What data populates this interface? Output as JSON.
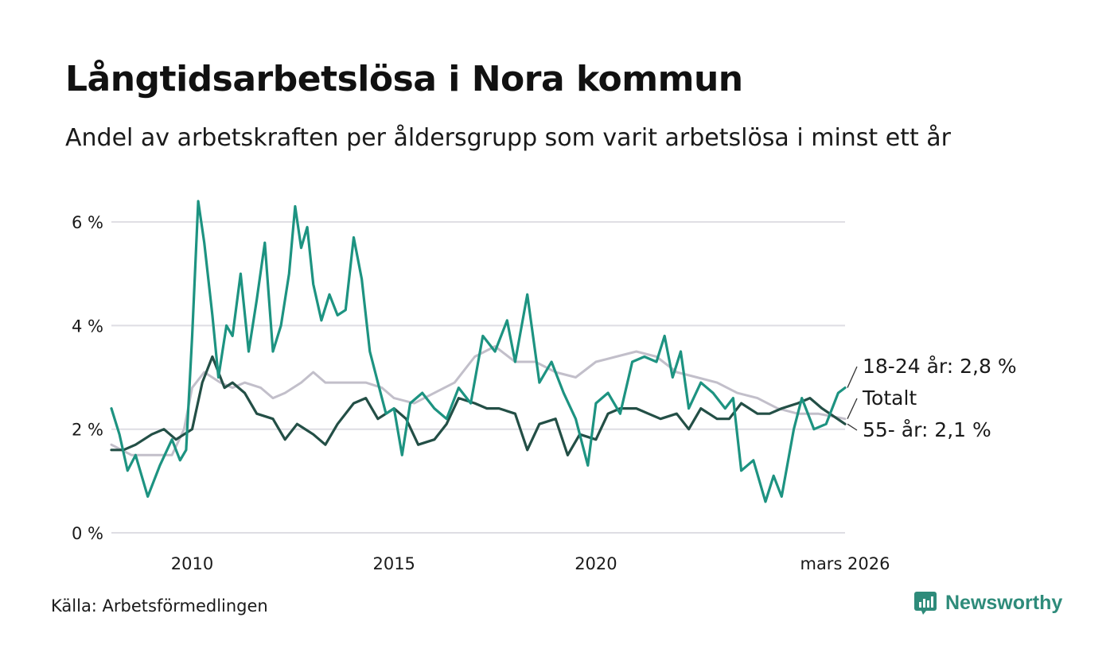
{
  "title": "Långtidsarbetslösa i Nora kommun",
  "subtitle": "Andel av arbetskraften per åldersgrupp som varit arbetslösa i minst ett år",
  "source": "Källa: Arbetsförmedlingen",
  "brand": "Newsworthy",
  "chart_data": {
    "type": "line",
    "x_range": [
      2008.0,
      2026.17
    ],
    "ylim": [
      0,
      6.6
    ],
    "y_ticks": [
      0,
      2,
      4,
      6
    ],
    "y_tick_labels": [
      "0 %",
      "2 %",
      "4 %",
      "6 %"
    ],
    "x_ticks": [
      2010,
      2015,
      2020,
      2026.17
    ],
    "x_tick_labels": [
      "2010",
      "2015",
      "2020",
      "mars 2026"
    ],
    "grid": true,
    "series": [
      {
        "name": "Totalt",
        "label": "Totalt",
        "color": "#c2bfca",
        "x": [
          2008.0,
          2008.5,
          2009.0,
          2009.5,
          2009.8,
          2010.0,
          2010.3,
          2010.7,
          2011.0,
          2011.3,
          2011.7,
          2012.0,
          2012.3,
          2012.7,
          2013.0,
          2013.3,
          2013.7,
          2014.0,
          2014.3,
          2014.7,
          2015.0,
          2015.5,
          2016.0,
          2016.5,
          2017.0,
          2017.5,
          2018.0,
          2018.5,
          2019.0,
          2019.5,
          2020.0,
          2020.5,
          2021.0,
          2021.5,
          2022.0,
          2022.5,
          2023.0,
          2023.5,
          2024.0,
          2024.5,
          2025.0,
          2025.5,
          2026.17
        ],
        "values": [
          1.7,
          1.5,
          1.5,
          1.5,
          2.0,
          2.8,
          3.1,
          2.9,
          2.8,
          2.9,
          2.8,
          2.6,
          2.7,
          2.9,
          3.1,
          2.9,
          2.9,
          2.9,
          2.9,
          2.8,
          2.6,
          2.5,
          2.7,
          2.9,
          3.4,
          3.6,
          3.3,
          3.3,
          3.1,
          3.0,
          3.3,
          3.4,
          3.5,
          3.4,
          3.1,
          3.0,
          2.9,
          2.7,
          2.6,
          2.4,
          2.3,
          2.3,
          2.2
        ]
      },
      {
        "name": "55- år",
        "label": "55- år: 2,1 %",
        "color": "#234f46",
        "x": [
          2008.0,
          2008.3,
          2008.6,
          2009.0,
          2009.3,
          2009.6,
          2010.0,
          2010.25,
          2010.5,
          2010.8,
          2011.0,
          2011.3,
          2011.6,
          2012.0,
          2012.3,
          2012.6,
          2013.0,
          2013.3,
          2013.6,
          2014.0,
          2014.3,
          2014.6,
          2015.0,
          2015.3,
          2015.6,
          2016.0,
          2016.3,
          2016.6,
          2017.0,
          2017.3,
          2017.6,
          2018.0,
          2018.3,
          2018.6,
          2019.0,
          2019.3,
          2019.6,
          2020.0,
          2020.3,
          2020.6,
          2021.0,
          2021.3,
          2021.6,
          2022.0,
          2022.3,
          2022.6,
          2023.0,
          2023.3,
          2023.6,
          2024.0,
          2024.3,
          2024.6,
          2025.0,
          2025.3,
          2025.6,
          2026.17
        ],
        "values": [
          1.6,
          1.6,
          1.7,
          1.9,
          2.0,
          1.8,
          2.0,
          2.9,
          3.4,
          2.8,
          2.9,
          2.7,
          2.3,
          2.2,
          1.8,
          2.1,
          1.9,
          1.7,
          2.1,
          2.5,
          2.6,
          2.2,
          2.4,
          2.2,
          1.7,
          1.8,
          2.1,
          2.6,
          2.5,
          2.4,
          2.4,
          2.3,
          1.6,
          2.1,
          2.2,
          1.5,
          1.9,
          1.8,
          2.3,
          2.4,
          2.4,
          2.3,
          2.2,
          2.3,
          2.0,
          2.4,
          2.2,
          2.2,
          2.5,
          2.3,
          2.3,
          2.4,
          2.5,
          2.6,
          2.4,
          2.1
        ]
      },
      {
        "name": "18-24 år",
        "label": "18-24 år: 2,8 %",
        "color": "#1d9381",
        "x": [
          2008.0,
          2008.2,
          2008.4,
          2008.6,
          2008.9,
          2009.2,
          2009.5,
          2009.7,
          2009.85,
          2010.0,
          2010.15,
          2010.3,
          2010.5,
          2010.65,
          2010.85,
          2011.0,
          2011.2,
          2011.4,
          2011.6,
          2011.8,
          2012.0,
          2012.2,
          2012.4,
          2012.55,
          2012.7,
          2012.85,
          2013.0,
          2013.2,
          2013.4,
          2013.6,
          2013.8,
          2014.0,
          2014.2,
          2014.4,
          2014.6,
          2014.8,
          2015.0,
          2015.2,
          2015.4,
          2015.7,
          2016.0,
          2016.3,
          2016.6,
          2016.9,
          2017.2,
          2017.5,
          2017.8,
          2018.0,
          2018.3,
          2018.6,
          2018.9,
          2019.2,
          2019.5,
          2019.8,
          2020.0,
          2020.3,
          2020.6,
          2020.9,
          2021.2,
          2021.5,
          2021.7,
          2021.9,
          2022.1,
          2022.3,
          2022.6,
          2022.9,
          2023.2,
          2023.4,
          2023.6,
          2023.9,
          2024.2,
          2024.4,
          2024.6,
          2024.9,
          2025.1,
          2025.4,
          2025.7,
          2026.0,
          2026.17
        ],
        "values": [
          2.4,
          1.9,
          1.2,
          1.5,
          0.7,
          1.3,
          1.8,
          1.4,
          1.6,
          3.8,
          6.4,
          5.6,
          4.2,
          3.0,
          4.0,
          3.8,
          5.0,
          3.5,
          4.5,
          5.6,
          3.5,
          4.0,
          5.0,
          6.3,
          5.5,
          5.9,
          4.8,
          4.1,
          4.6,
          4.2,
          4.3,
          5.7,
          4.9,
          3.5,
          2.9,
          2.3,
          2.4,
          1.5,
          2.5,
          2.7,
          2.4,
          2.2,
          2.8,
          2.5,
          3.8,
          3.5,
          4.1,
          3.3,
          4.6,
          2.9,
          3.3,
          2.7,
          2.2,
          1.3,
          2.5,
          2.7,
          2.3,
          3.3,
          3.4,
          3.3,
          3.8,
          3.0,
          3.5,
          2.4,
          2.9,
          2.7,
          2.4,
          2.6,
          1.2,
          1.4,
          0.6,
          1.1,
          0.7,
          2.0,
          2.6,
          2.0,
          2.1,
          2.7,
          2.8
        ]
      }
    ]
  }
}
